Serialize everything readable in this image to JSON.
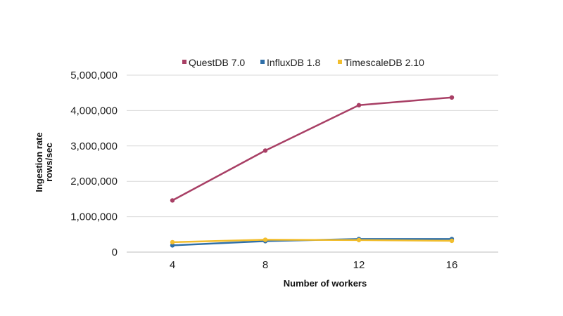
{
  "chart_data": {
    "type": "line",
    "title": "",
    "xlabel": "Number of workers",
    "ylabel_lines": [
      "Ingestion rate",
      "rows/sec"
    ],
    "x": [
      4,
      8,
      12,
      16
    ],
    "x_tick_labels": [
      "4",
      "8",
      "12",
      "16"
    ],
    "y_tick_labels": [
      "0",
      "1,000,000",
      "2,000,000",
      "3,000,000",
      "4,000,000",
      "5,000,000"
    ],
    "ylim": [
      0,
      5000000
    ],
    "grid": "horizontal",
    "legend_position": "top",
    "series": [
      {
        "name": "QuestDB 7.0",
        "color": "#a83f65",
        "values": [
          1460000,
          2870000,
          4150000,
          4370000
        ]
      },
      {
        "name": "InfluxDB 1.8",
        "color": "#2f6fa8",
        "values": [
          190000,
          310000,
          370000,
          370000
        ]
      },
      {
        "name": "TimescaleDB 2.10",
        "color": "#f2be2e",
        "values": [
          280000,
          350000,
          340000,
          320000
        ]
      }
    ]
  }
}
